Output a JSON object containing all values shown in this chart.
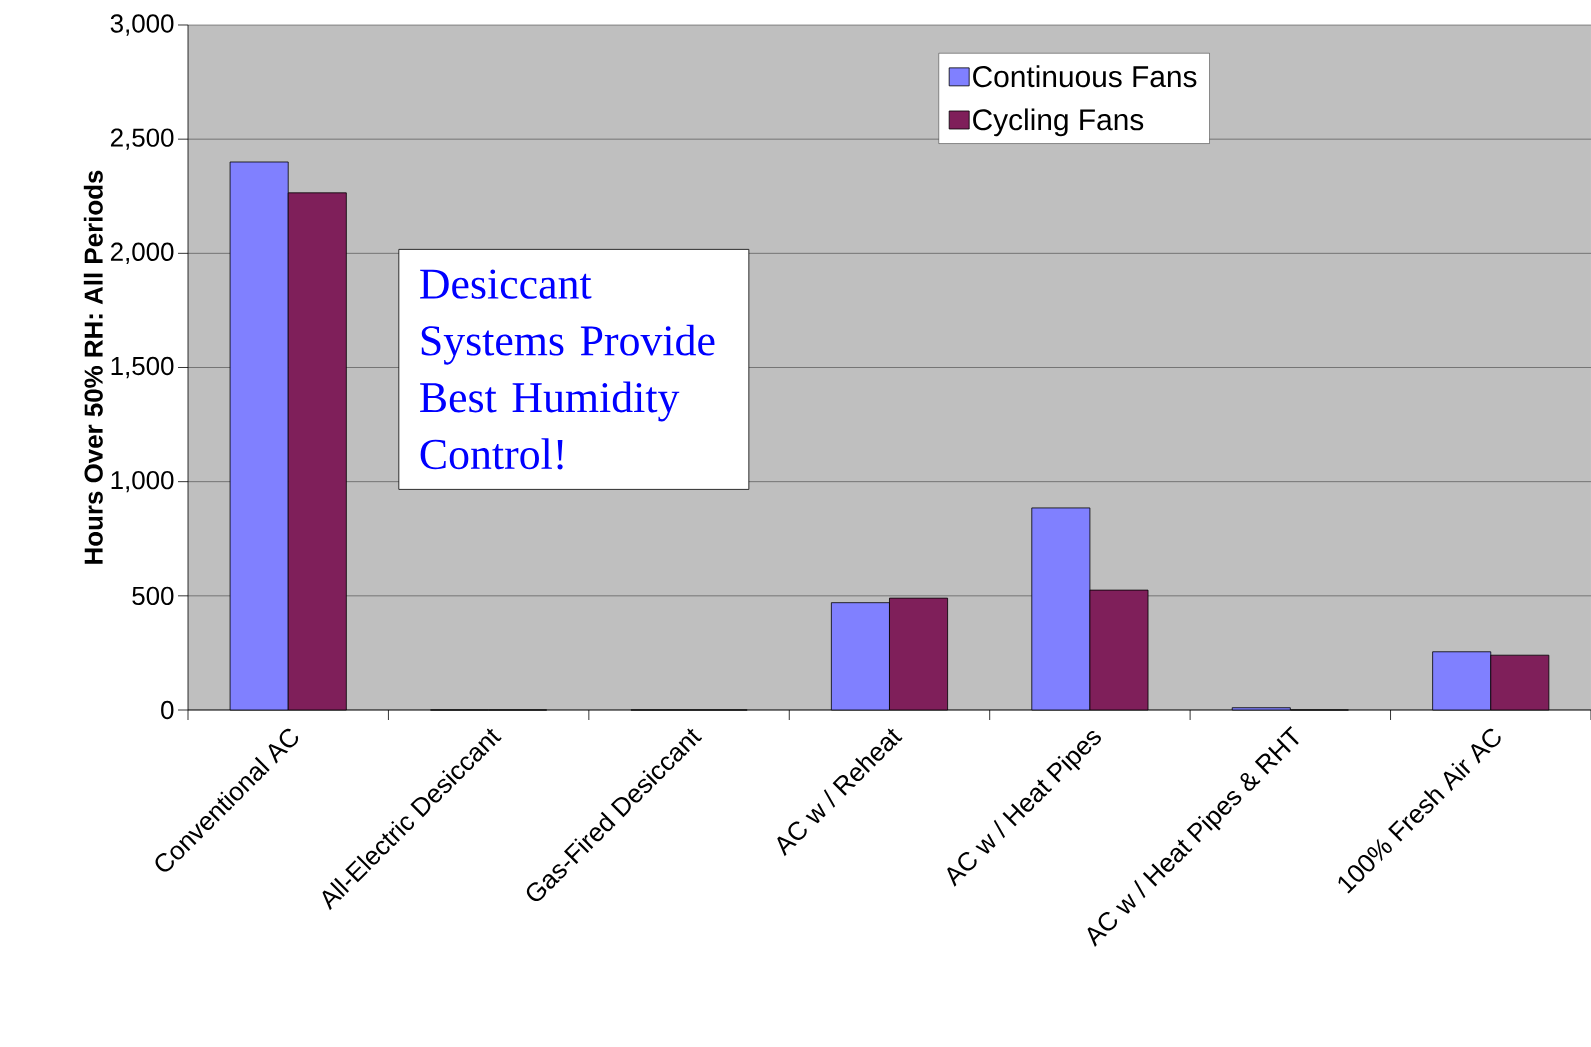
{
  "chart_data": {
    "type": "bar",
    "ylabel": "Hours Over 50% RH:  All Periods",
    "categories": [
      "Conventional AC",
      "All-Electric Desiccant",
      "Gas-Fired Desiccant",
      "AC w / Reheat",
      "AC w / Heat Pipes",
      "AC w / Heat Pipes & RHT",
      "100% Fresh Air AC"
    ],
    "series": [
      {
        "name": "Continuous Fans",
        "color": "#8080ff",
        "values": [
          2400,
          0,
          0,
          470,
          885,
          10,
          255
        ]
      },
      {
        "name": "Cycling Fans",
        "color": "#7f1f5a",
        "values": [
          2265,
          0,
          0,
          490,
          525,
          0,
          240
        ]
      }
    ],
    "ylim": [
      0,
      3000
    ],
    "yticks": [
      0,
      500,
      {
        "value": 1000,
        "label": "1,000"
      },
      {
        "value": 1500,
        "label": "1,500"
      },
      {
        "value": 2000,
        "label": "2,000"
      },
      {
        "value": 2500,
        "label": "2,500"
      },
      {
        "value": 3000,
        "label": "3,000"
      }
    ],
    "grid": "y",
    "legend": "top right",
    "annotations": [
      "Desiccant Systems Provide Best Humidity Control!"
    ]
  }
}
